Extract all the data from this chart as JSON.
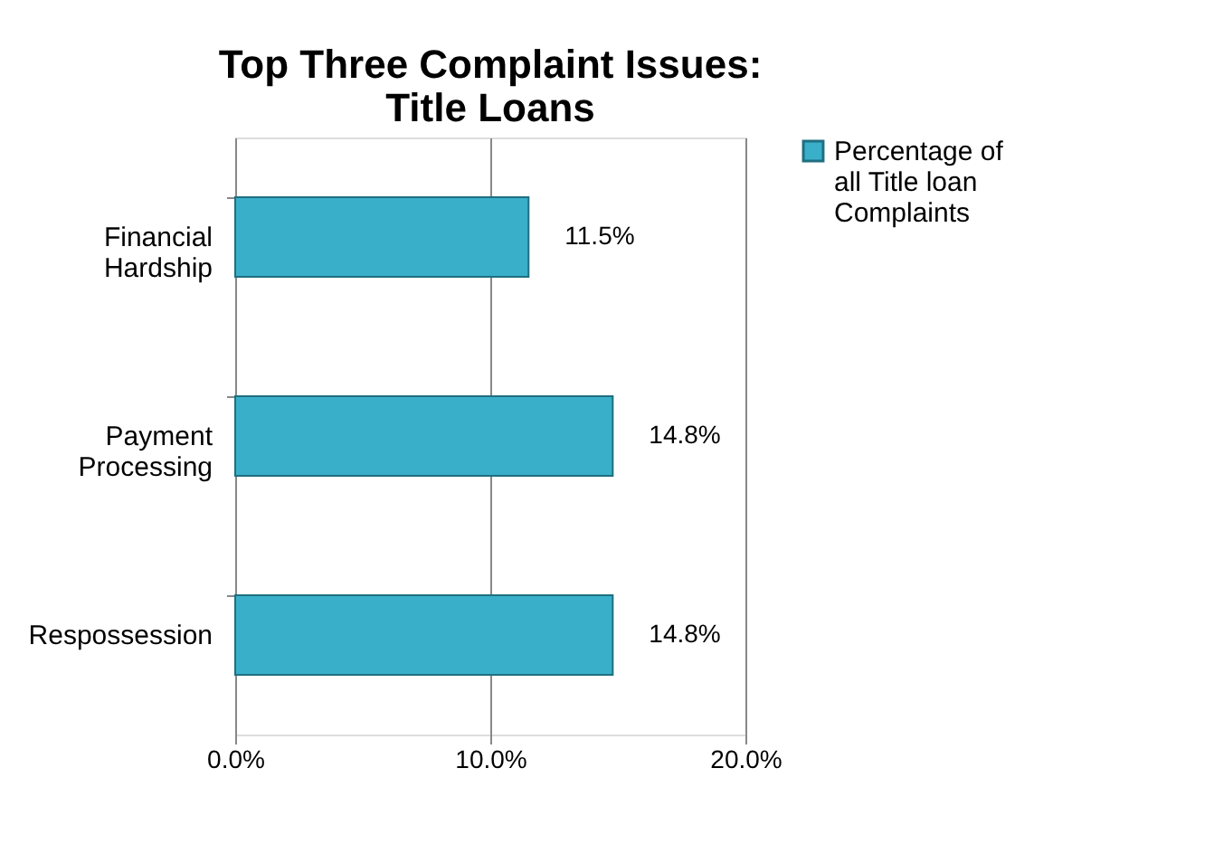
{
  "chart_data": {
    "type": "bar",
    "orientation": "horizontal",
    "title": "Top Three Complaint Issues: Title Loans",
    "categories": [
      "Financial Hardship",
      "Payment Processing",
      "Respossession"
    ],
    "series": [
      {
        "name": "Percentage of all Title loan Complaints",
        "color": "#3aafc9",
        "values": [
          11.5,
          14.8,
          14.8
        ],
        "value_labels": [
          "11.5%",
          "14.8%",
          "14.8%"
        ]
      }
    ],
    "xlim": [
      0,
      20
    ],
    "xticks": [
      {
        "value": 0,
        "label": "0.0%"
      },
      {
        "value": 10,
        "label": "10.0%"
      },
      {
        "value": 20,
        "label": "20.0%"
      }
    ],
    "grid": "x",
    "legend": "right"
  }
}
